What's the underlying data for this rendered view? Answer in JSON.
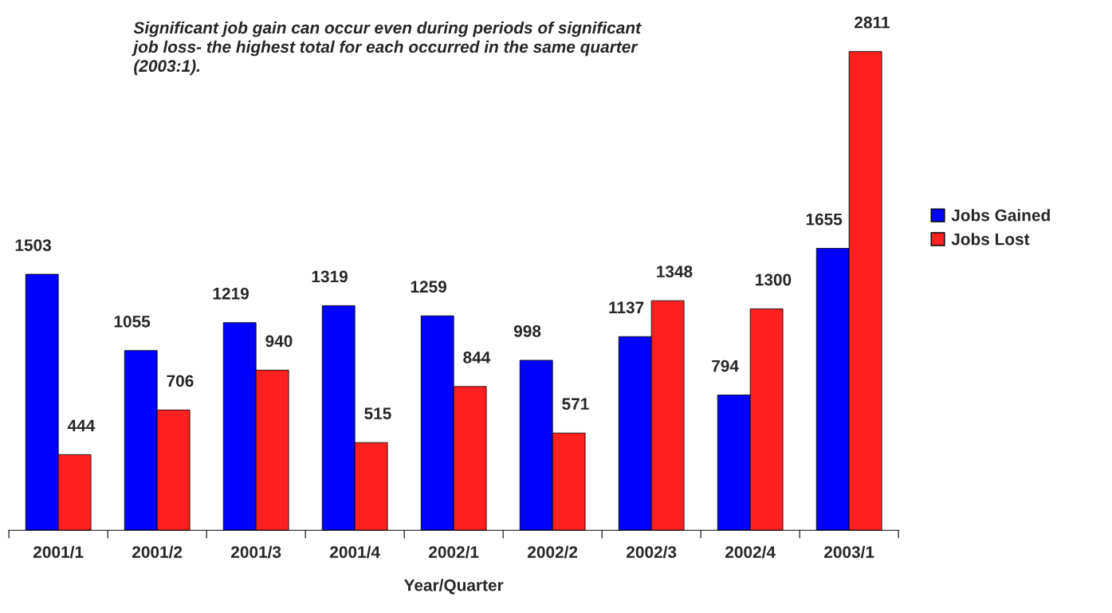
{
  "chart_data": {
    "type": "bar",
    "xlabel": "Year/Quarter",
    "categories": [
      "2001/1",
      "2001/2",
      "2001/3",
      "2001/4",
      "2002/1",
      "2002/2",
      "2002/3",
      "2002/4",
      "2003/1"
    ],
    "series": [
      {
        "name": "Jobs Gained",
        "color": "#0000ff",
        "values": [
          1503,
          1055,
          1219,
          1319,
          1259,
          998,
          1137,
          794,
          1655
        ]
      },
      {
        "name": "Jobs Lost",
        "color": "#ff2020",
        "values": [
          444,
          706,
          940,
          515,
          844,
          571,
          1348,
          1300,
          2811
        ]
      }
    ],
    "data_labels": true,
    "legend": "right",
    "grid": false,
    "annotations": [
      "Significant job gain can occur even during periods of significant job loss- the highest total for each occurred in the same quarter (2003:1)."
    ]
  }
}
